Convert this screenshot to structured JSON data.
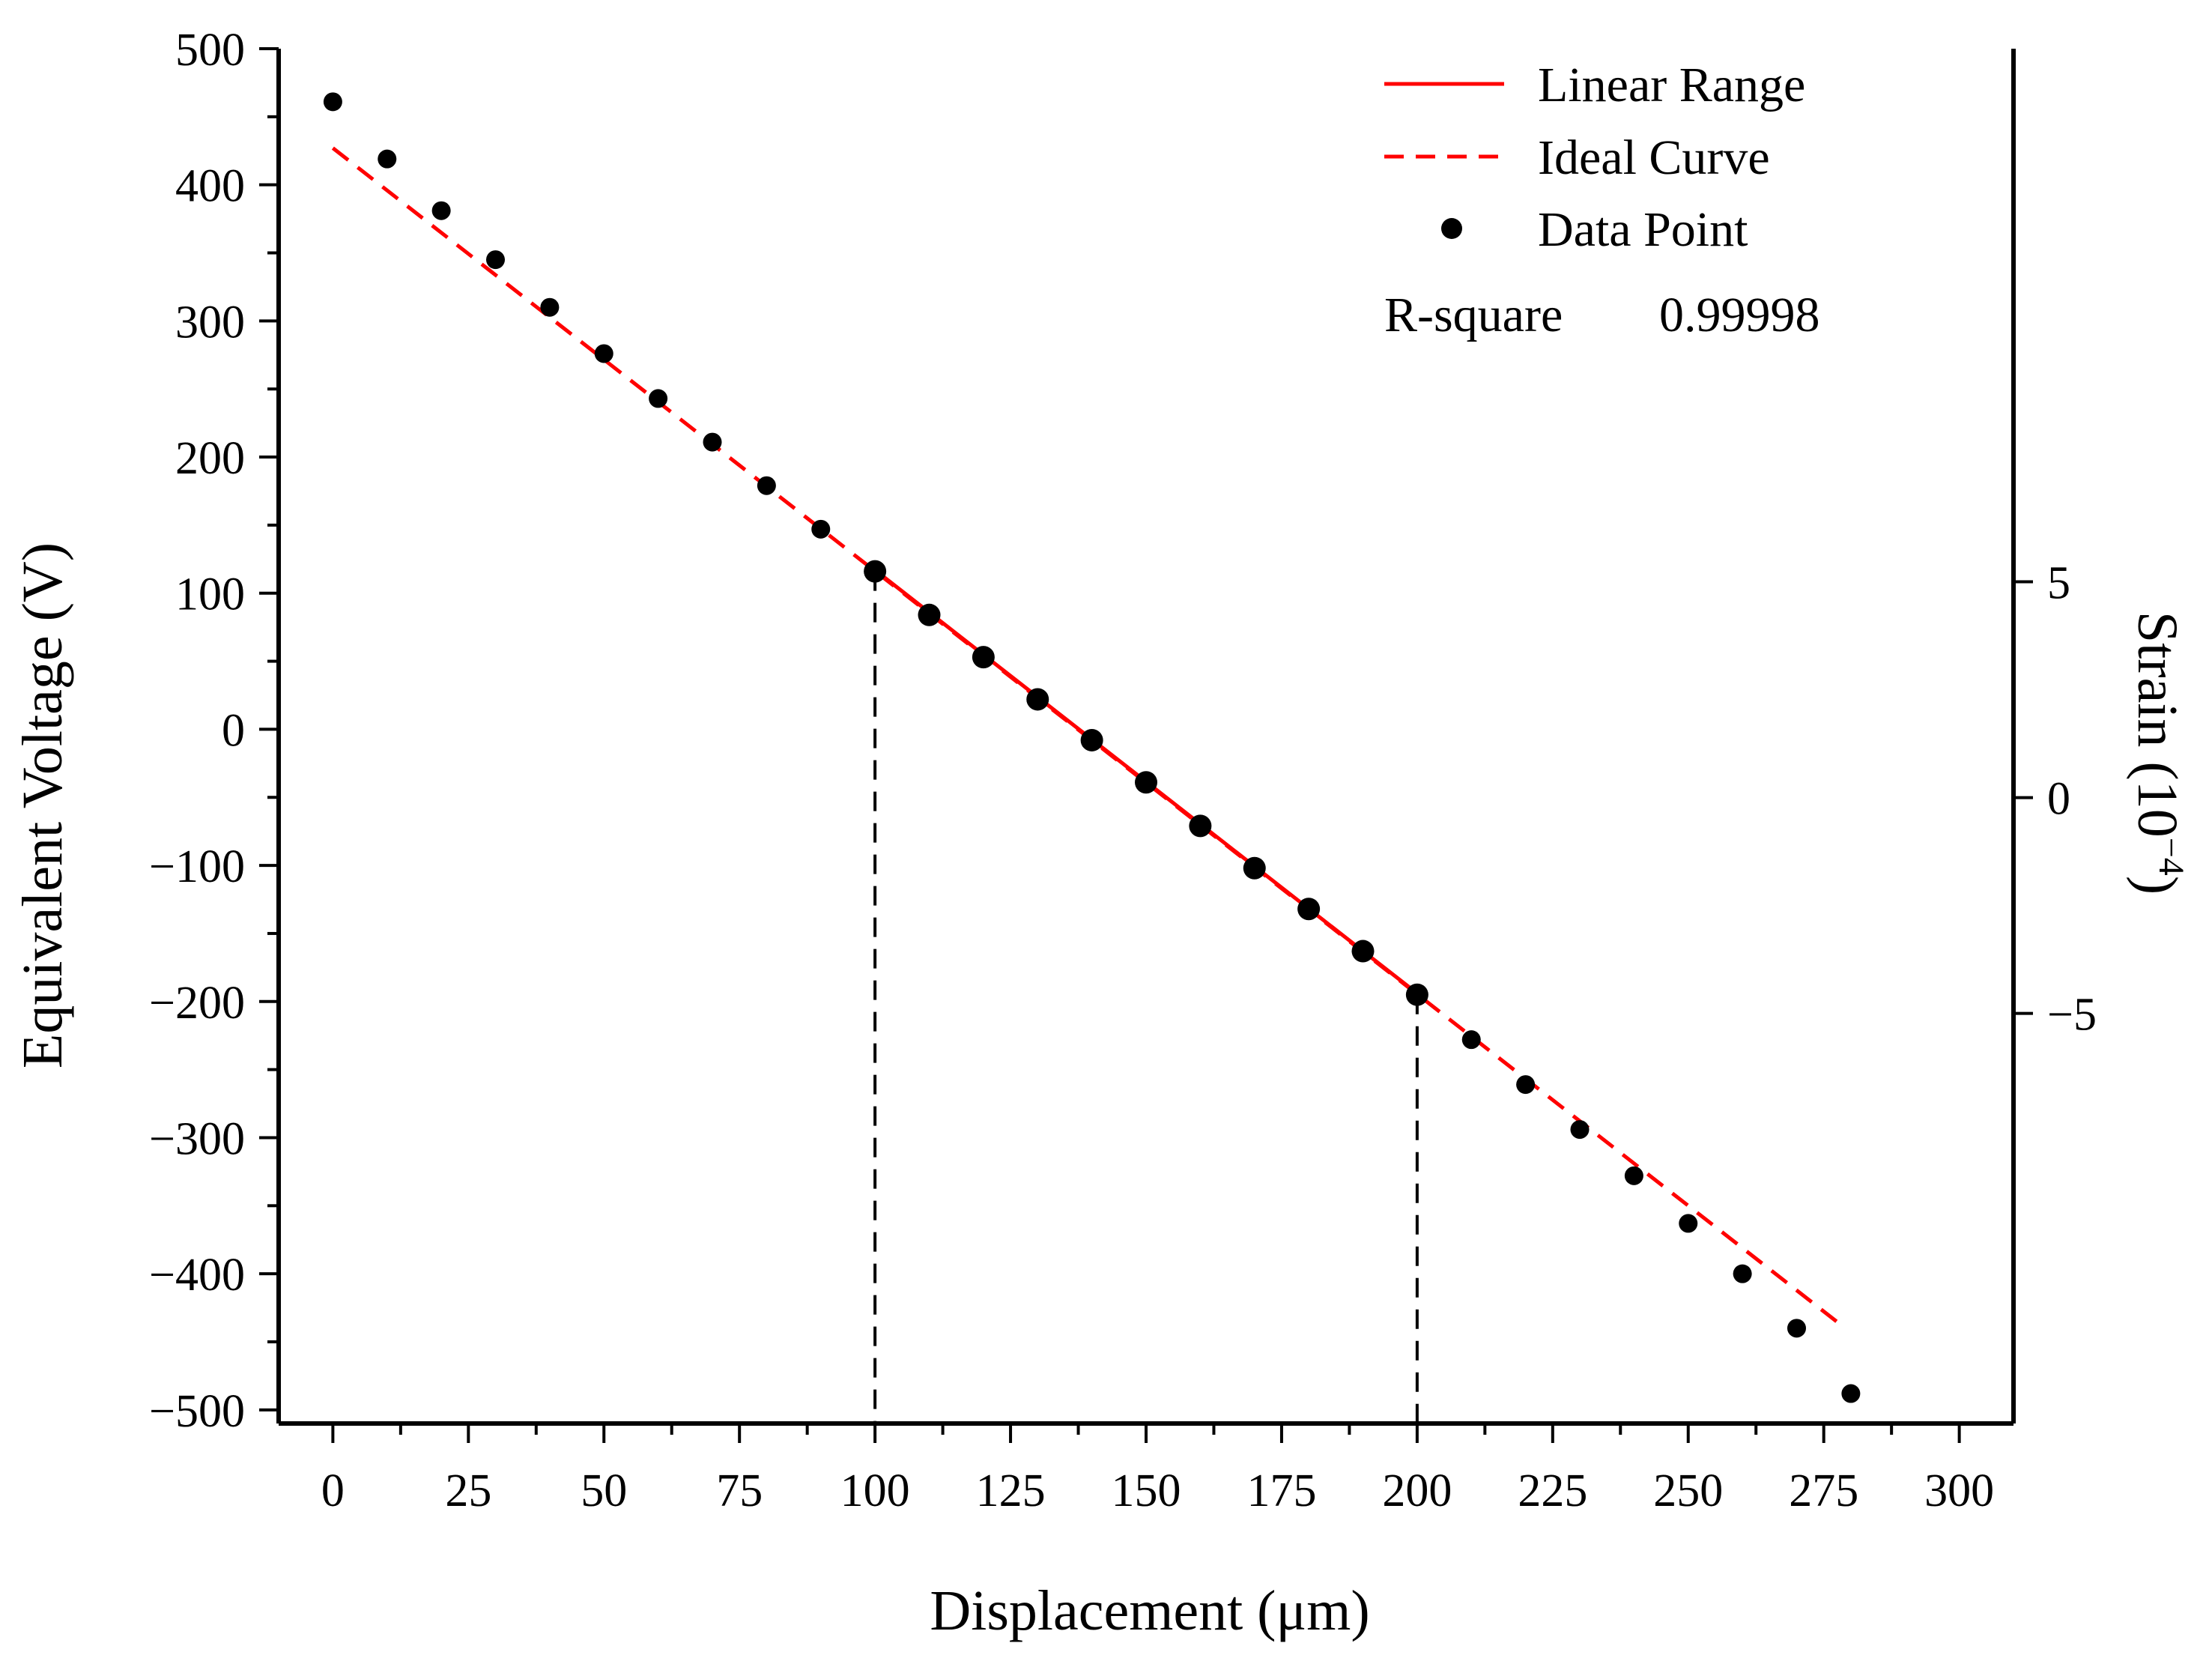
{
  "chart_data": {
    "type": "scatter",
    "xlabel": "Displacement (μm)",
    "ylabel": "Equivalent Voltage (V)",
    "y2label_main": "Strain (10",
    "y2label_exp": "−4",
    "y2label_close": ")",
    "xlim": [
      -10,
      310
    ],
    "ylim": [
      -510,
      500
    ],
    "y2lim": [
      -14.5,
      17.35
    ],
    "x_ticks": [
      0,
      25,
      50,
      75,
      100,
      125,
      150,
      175,
      200,
      225,
      250,
      275,
      300
    ],
    "x_tick_labels": [
      "0",
      "25",
      "50",
      "75",
      "100",
      "125",
      "150",
      "175",
      "200",
      "225",
      "250",
      "275",
      "300"
    ],
    "y_ticks": [
      500,
      400,
      300,
      200,
      100,
      0,
      -100,
      -200,
      -300,
      -400,
      -500
    ],
    "y_tick_labels": [
      "500",
      "400",
      "300",
      "200",
      "100",
      "0",
      "−100",
      "−200",
      "−300",
      "−400",
      "−500"
    ],
    "y2_ticks": [
      5,
      0,
      -5
    ],
    "y2_tick_labels": [
      "5",
      "0",
      "−5"
    ],
    "grid": false,
    "legend_position": "top-right",
    "series": [
      {
        "name": "Linear Range",
        "kind": "line",
        "style": "solid",
        "color": "#ff0000",
        "x": [
          100,
          200
        ],
        "y": [
          117,
          -194
        ]
      },
      {
        "name": "Ideal Curve",
        "kind": "line",
        "style": "dashed",
        "color": "#ff0000",
        "x": [
          0,
          278
        ],
        "y": [
          427,
          -437
        ]
      },
      {
        "name": "Data Point",
        "kind": "scatter",
        "color": "#000000",
        "x": [
          0,
          10,
          20,
          30,
          40,
          50,
          60,
          70,
          80,
          90,
          100,
          110,
          120,
          130,
          140,
          150,
          160,
          170,
          180,
          190,
          200,
          210,
          220,
          230,
          240,
          250,
          260,
          270,
          280
        ],
        "y": [
          461,
          419,
          381,
          345,
          310,
          276,
          243,
          211,
          179,
          147,
          116,
          84,
          53,
          22,
          -8,
          -39,
          -71,
          -102,
          -132,
          -163,
          -195,
          -228,
          -261,
          -294,
          -328,
          -363,
          -400,
          -440,
          -488
        ]
      }
    ],
    "reference_lines": [
      {
        "x": 100,
        "y_top": 116,
        "style": "dashed",
        "color": "#000000"
      },
      {
        "x": 200,
        "y_top": -195,
        "style": "dashed",
        "color": "#000000"
      }
    ],
    "annotation": {
      "label": "R-square",
      "value": "0.99998"
    }
  }
}
